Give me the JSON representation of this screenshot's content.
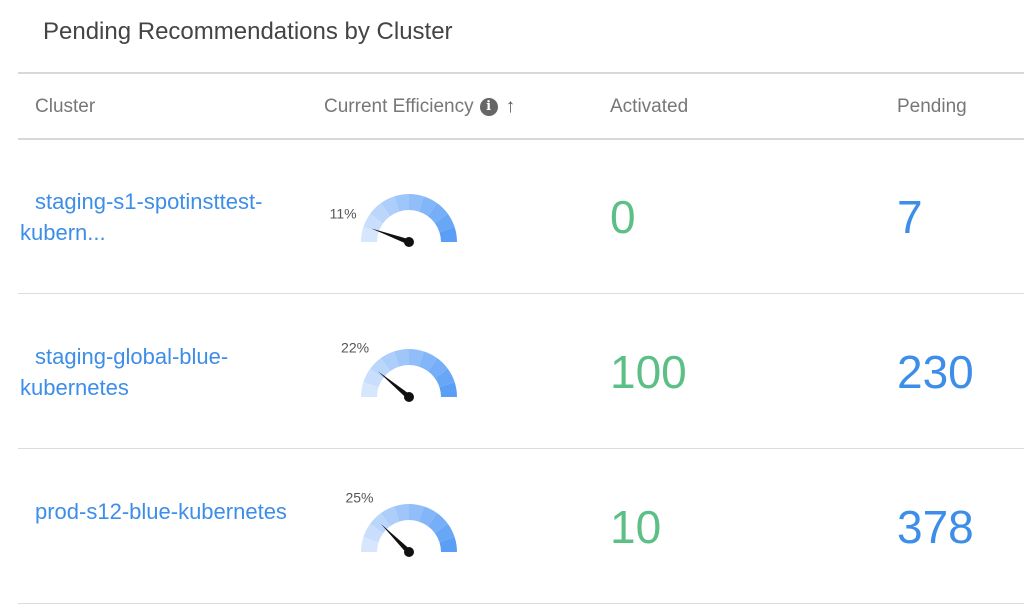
{
  "title": "Pending Recommendations by Cluster",
  "columns": {
    "cluster": "Cluster",
    "efficiency": "Current Efficiency",
    "info_icon": "i",
    "sort_icon": "↑",
    "activated": "Activated",
    "pending": "Pending"
  },
  "colors": {
    "link": "#3d8ee8",
    "activated": "#5cbf86",
    "gauge_light": "#d6e6fd",
    "gauge_dark": "#5a9ef5"
  },
  "rows": [
    {
      "cluster": "staging-s1-spotinsttest-kubern...",
      "efficiency": 11,
      "efficiency_label": "11%",
      "activated": "0",
      "pending": "7"
    },
    {
      "cluster": "staging-global-blue-kubernetes",
      "efficiency": 22,
      "efficiency_label": "22%",
      "activated": "100",
      "pending": "230"
    },
    {
      "cluster": "prod-s12-blue-kubernetes",
      "efficiency": 25,
      "efficiency_label": "25%",
      "activated": "10",
      "pending": "378"
    }
  ]
}
